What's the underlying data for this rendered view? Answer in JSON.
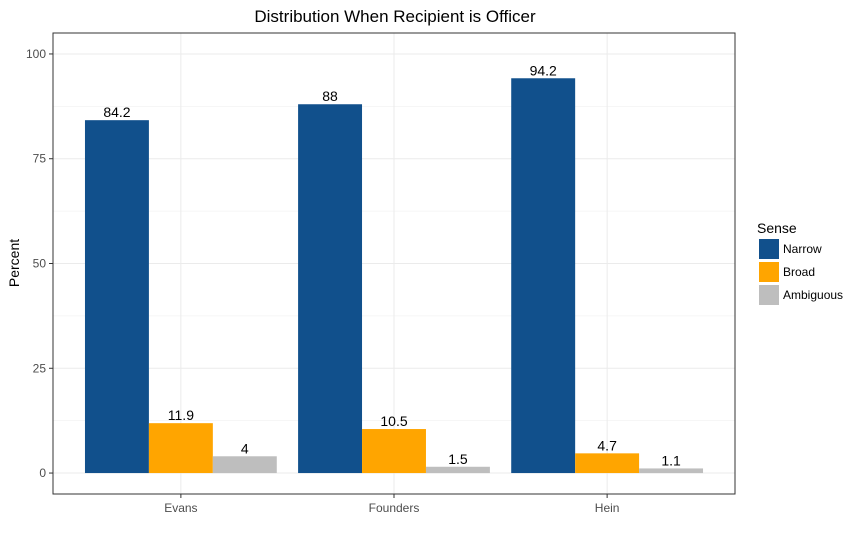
{
  "chart_data": {
    "type": "bar",
    "title": "Distribution When Recipient is Officer",
    "xlabel": "",
    "ylabel": "Percent",
    "categories": [
      "Evans",
      "Founders",
      "Hein"
    ],
    "series": [
      {
        "name": "Narrow",
        "color": "#11508c",
        "values": [
          84.2,
          88,
          94.2
        ],
        "labels": [
          "84.2",
          "88",
          "94.2"
        ]
      },
      {
        "name": "Broad",
        "color": "#ffa500",
        "values": [
          11.9,
          10.5,
          4.7
        ],
        "labels": [
          "11.9",
          "10.5",
          "4.7"
        ]
      },
      {
        "name": "Ambiguous",
        "color": "#bebebe",
        "values": [
          4,
          1.5,
          1.1
        ],
        "labels": [
          "4",
          "1.5",
          "1.1"
        ]
      }
    ],
    "ylim": [
      -5,
      105
    ],
    "yticks": [
      0,
      25,
      50,
      75,
      100
    ],
    "legend": {
      "title": "Sense",
      "placement": "right"
    },
    "grid": true
  }
}
